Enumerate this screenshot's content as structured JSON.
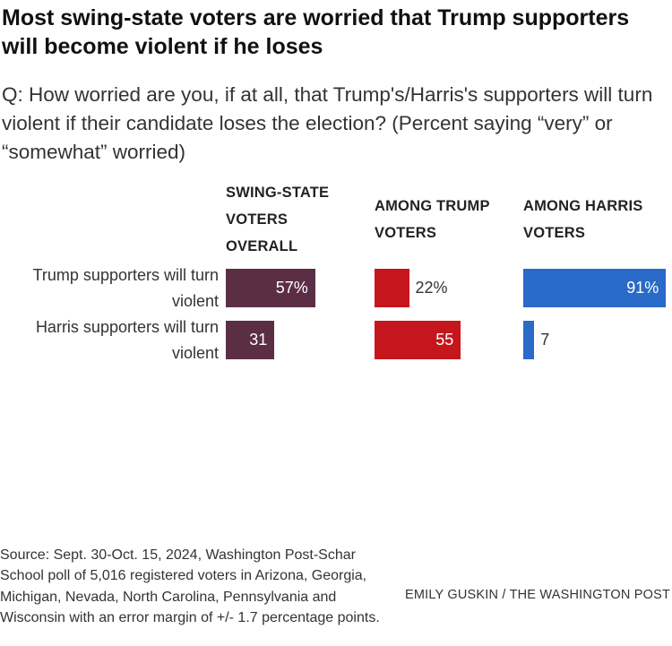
{
  "title": "Most swing-state voters are worried that Trump supporters will become violent if he loses",
  "subtitle": "Q: How worried are you, if at all, that Trump's/Harris's supporters will turn violent if their candidate loses the election? (Percent saying “very” or “somewhat” worried)",
  "source": "Source: Sept. 30-Oct. 15, 2024, Washington Post-Schar School poll of 5,016 registered voters in Arizona, Georgia, Michigan, Nevada, North Carolina, Pennsylvania and Wisconsin with an error margin of +/- 1.7 percentage points.",
  "credit": "EMILY GUSKIN / THE WASHINGTON POST",
  "chart_data": {
    "type": "bar",
    "orientation": "horizontal",
    "title": "Most swing-state voters are worried that Trump supporters will become violent if he loses",
    "categories": [
      "Trump supporters will turn violent",
      "Harris supporters will turn violent"
    ],
    "unit": "%",
    "xlim": [
      0,
      100
    ],
    "grid": false,
    "legend": "none",
    "series": [
      {
        "name": "SWING-STATE VOTERS OVERALL",
        "color": "#5c2e46",
        "values": [
          57,
          31
        ],
        "labels": [
          "57%",
          "31"
        ]
      },
      {
        "name": "AMONG TRUMP VOTERS",
        "color": "#c5161d",
        "values": [
          22,
          55
        ],
        "labels": [
          "22%",
          "55"
        ]
      },
      {
        "name": "AMONG HARRIS VOTERS",
        "color": "#2a6ac8",
        "values": [
          91,
          7
        ],
        "labels": [
          "91%",
          "7"
        ]
      }
    ]
  }
}
